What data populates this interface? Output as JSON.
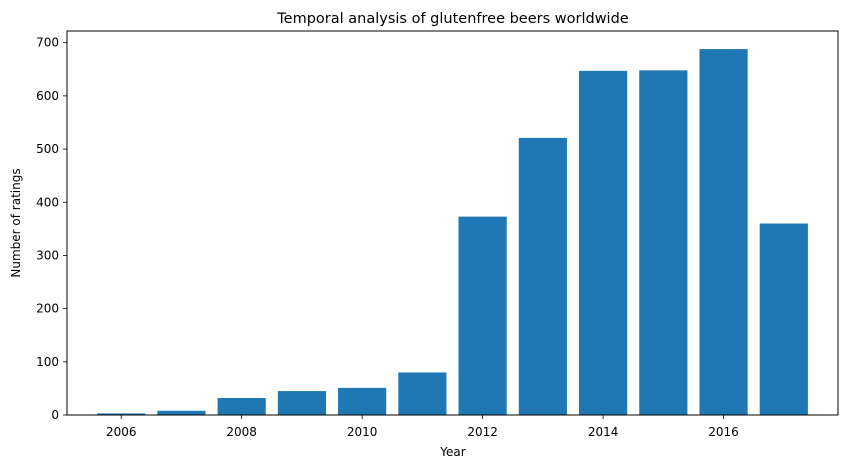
{
  "chart_data": {
    "type": "bar",
    "title": "Temporal analysis of glutenfree beers worldwide",
    "xlabel": "Year",
    "ylabel": "Number of ratings",
    "categories": [
      "2006",
      "2007",
      "2008",
      "2009",
      "2010",
      "2011",
      "2012",
      "2013",
      "2014",
      "2015",
      "2016",
      "2017"
    ],
    "x": [
      2006,
      2007,
      2008,
      2009,
      2010,
      2011,
      2012,
      2013,
      2014,
      2015,
      2016,
      2017
    ],
    "values": [
      3,
      8,
      32,
      45,
      51,
      80,
      373,
      521,
      647,
      648,
      688,
      360
    ],
    "xticks": [
      2006,
      2008,
      2010,
      2012,
      2014,
      2016
    ],
    "yticks": [
      0,
      100,
      200,
      300,
      400,
      500,
      600,
      700
    ],
    "xlim": [
      2005.1,
      2017.9
    ],
    "ylim": [
      0,
      722
    ],
    "bar_color": "#1f77b4",
    "grid": false,
    "legend": "none"
  }
}
